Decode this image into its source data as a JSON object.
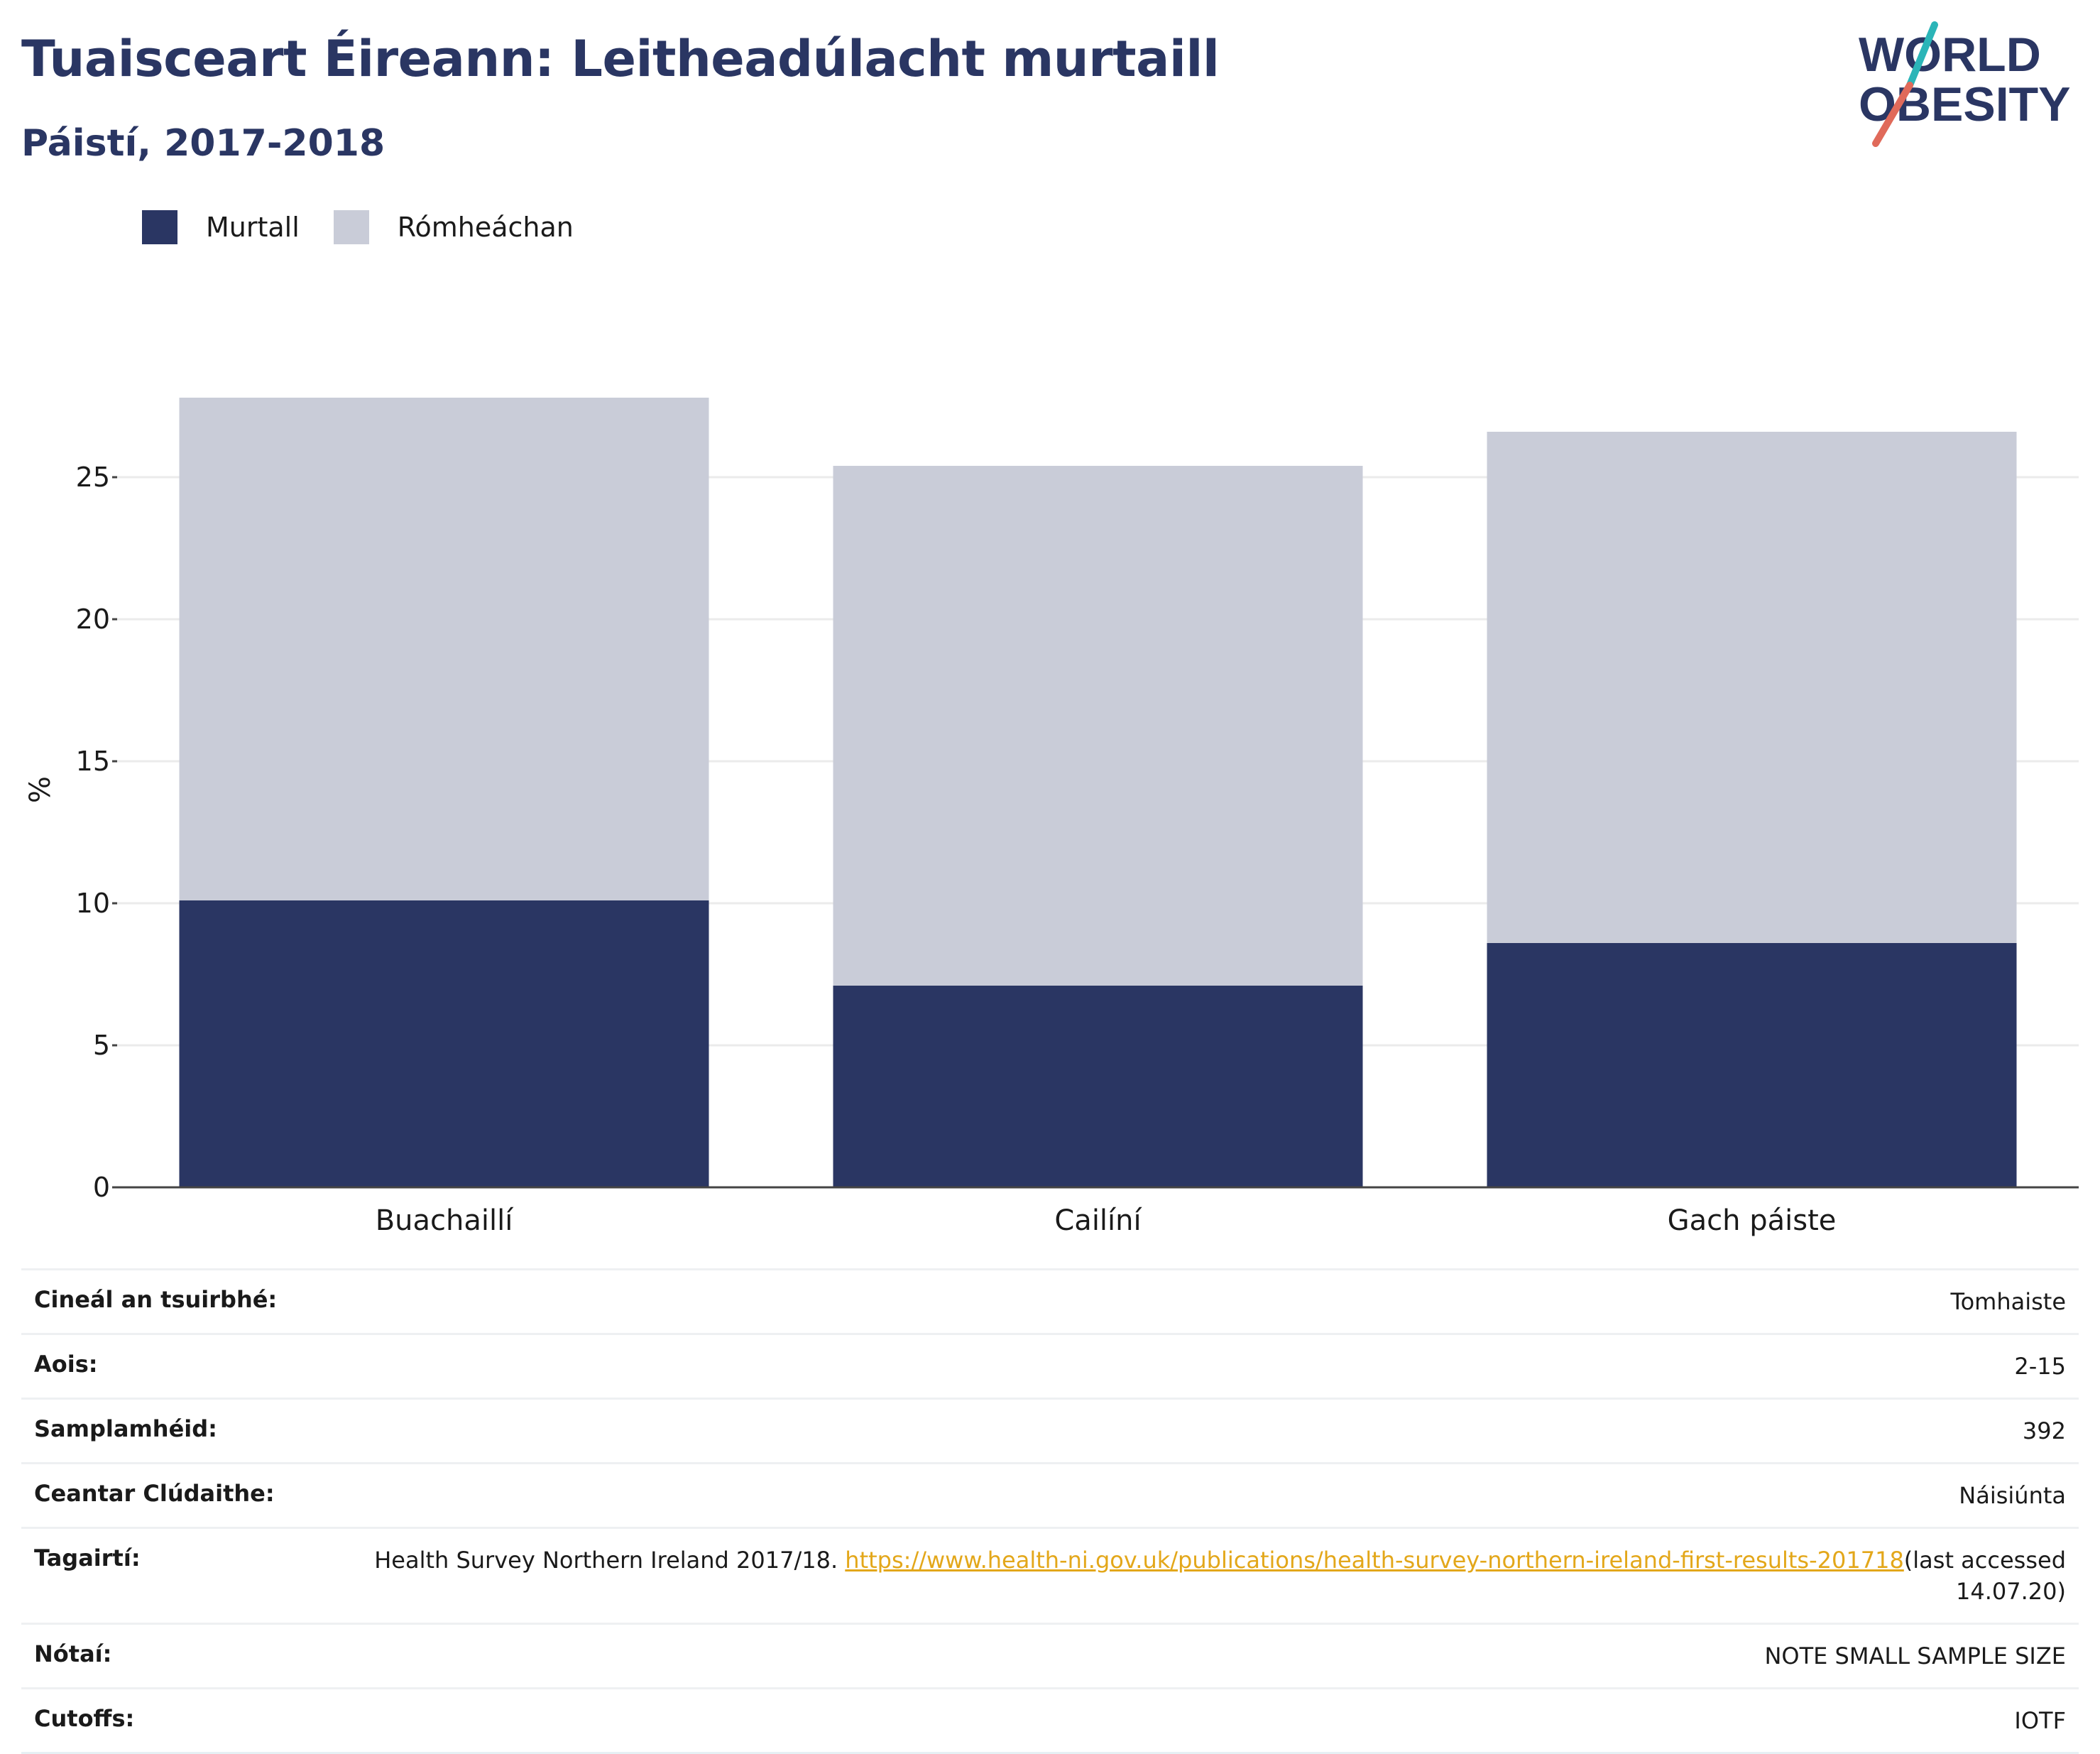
{
  "header": {
    "title": "Tuaisceart Éireann: Leitheadúlacht murtaill",
    "subtitle": "Páistí, 2017-2018"
  },
  "logo": {
    "line1": "WORLD",
    "line2": "OBESITY",
    "colors": {
      "text": "#2a3663",
      "slash_top": "#2bb5b8",
      "slash_bottom": "#e06a5a"
    }
  },
  "legend": [
    {
      "label": "Murtall",
      "color": "#2a3663"
    },
    {
      "label": "Rómheáchan",
      "color": "#c9ccd8"
    }
  ],
  "chart_data": {
    "type": "bar",
    "stacked": true,
    "categories": [
      "Buachaillí",
      "Cailíní",
      "Gach páiste"
    ],
    "series": [
      {
        "name": "Murtall",
        "values": [
          10.1,
          7.1,
          8.6
        ],
        "color": "#2a3663"
      },
      {
        "name": "Rómheáchan",
        "values": [
          17.7,
          18.3,
          18.0
        ],
        "color": "#c9ccd8"
      }
    ],
    "ylabel": "%",
    "ylim": [
      0,
      28
    ],
    "yticks": [
      0,
      5,
      10,
      15,
      20,
      25
    ],
    "grid": true,
    "legend_position": "top-left"
  },
  "info": {
    "survey_type": {
      "key": "Cineál an tsuirbhé:",
      "value": "Tomhaiste"
    },
    "age": {
      "key": "Aois:",
      "value": "2-15"
    },
    "sample_size": {
      "key": "Samplamhéid:",
      "value": "392"
    },
    "area": {
      "key": "Ceantar Clúdaithe:",
      "value": "Náisiúnta"
    },
    "references": {
      "key": "Tagairtí:",
      "text_before": "Health Survey Northern Ireland 2017/18. ",
      "link": "https://www.health-ni.gov.uk/publications/health-survey-northern-ireland-first-results-201718",
      "text_after": "(last accessed 14.07.20)"
    },
    "notes": {
      "key": "Nótaí:",
      "value": "NOTE SMALL SAMPLE SIZE"
    },
    "cutoffs": {
      "key": "Cutoffs:",
      "value": "IOTF"
    }
  }
}
